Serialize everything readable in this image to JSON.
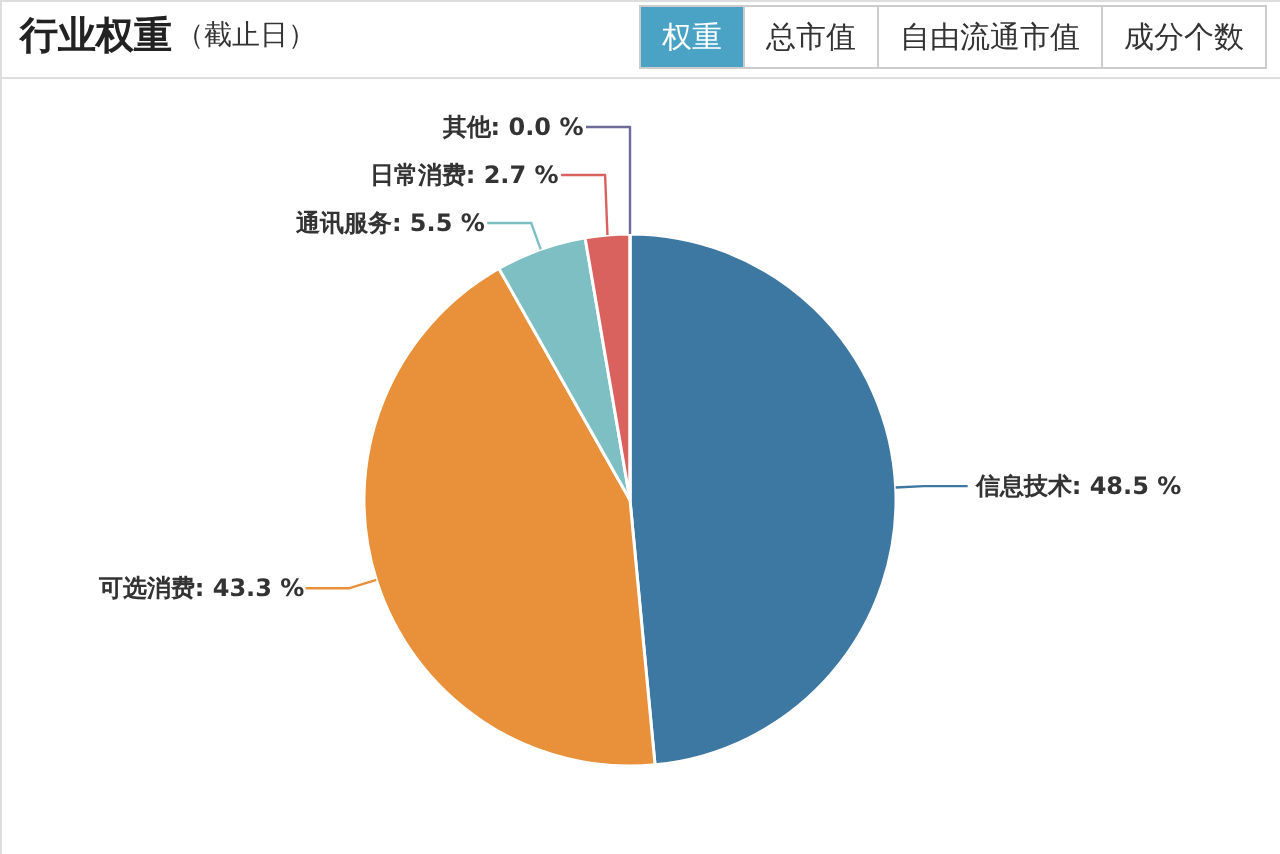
{
  "chart_data": {
    "type": "pie",
    "title": "行业权重",
    "subtitle": "（截止日）",
    "annotations": [
      "权重",
      "总市值",
      "自由流通市值",
      "成分个数"
    ],
    "categories": [
      "信息技术",
      "可选消费",
      "通讯服务",
      "日常消费",
      "其他"
    ],
    "values": [
      48.5,
      43.3,
      5.5,
      2.7,
      0.0
    ],
    "value_labels": [
      ": 48.5 %",
      ": 43.3 %",
      ": 5.5 %",
      ": 2.7 %",
      ": 0.0 %"
    ],
    "colors": [
      "#3d78a3",
      "#e8903a",
      "#7dbfc3",
      "#d9625f",
      "#6e6a9c"
    ]
  }
}
